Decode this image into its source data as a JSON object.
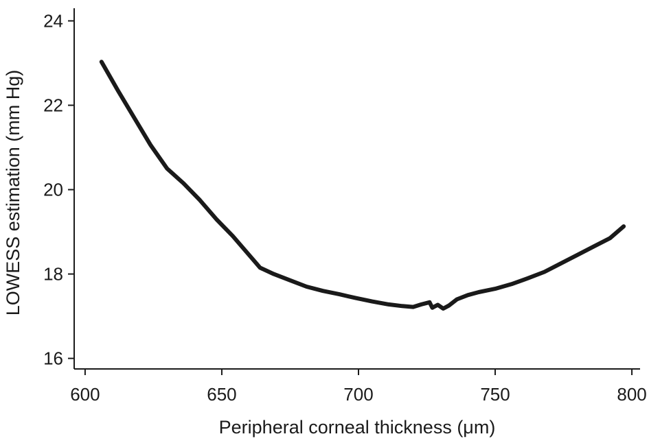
{
  "chart_data": {
    "type": "line",
    "title": "",
    "xlabel": "Peripheral corneal thickness (μm)",
    "ylabel": "LOWESS estimation (mm Hg)",
    "xlim": [
      596,
      803
    ],
    "ylim": [
      15.75,
      24.3
    ],
    "x_ticks": [
      600,
      650,
      700,
      750,
      800
    ],
    "y_ticks": [
      16,
      18,
      20,
      22,
      24
    ],
    "x_tick_labels": [
      "600",
      "650",
      "700",
      "750",
      "800"
    ],
    "y_tick_labels": [
      "16",
      "18",
      "20",
      "22",
      "24"
    ],
    "grid": false,
    "series": [
      {
        "x": [
          606,
          612,
          618,
          624,
          630,
          636,
          642,
          648,
          654,
          660,
          664,
          669,
          675,
          681,
          687,
          693,
          699,
          705,
          711,
          716,
          720,
          723,
          726,
          727,
          729,
          731,
          733,
          736,
          740,
          744,
          750,
          756,
          762,
          768,
          774,
          780,
          786,
          792,
          797
        ],
        "y": [
          23.03,
          22.35,
          21.7,
          21.05,
          20.5,
          20.15,
          19.75,
          19.3,
          18.9,
          18.45,
          18.15,
          18.0,
          17.85,
          17.7,
          17.6,
          17.52,
          17.43,
          17.35,
          17.28,
          17.24,
          17.22,
          17.28,
          17.33,
          17.2,
          17.27,
          17.18,
          17.25,
          17.4,
          17.5,
          17.57,
          17.65,
          17.76,
          17.9,
          18.05,
          18.25,
          18.45,
          18.65,
          18.85,
          19.13
        ]
      }
    ],
    "colors": {
      "line": "#1a1a1a",
      "axis": "#1a1a1a"
    }
  }
}
